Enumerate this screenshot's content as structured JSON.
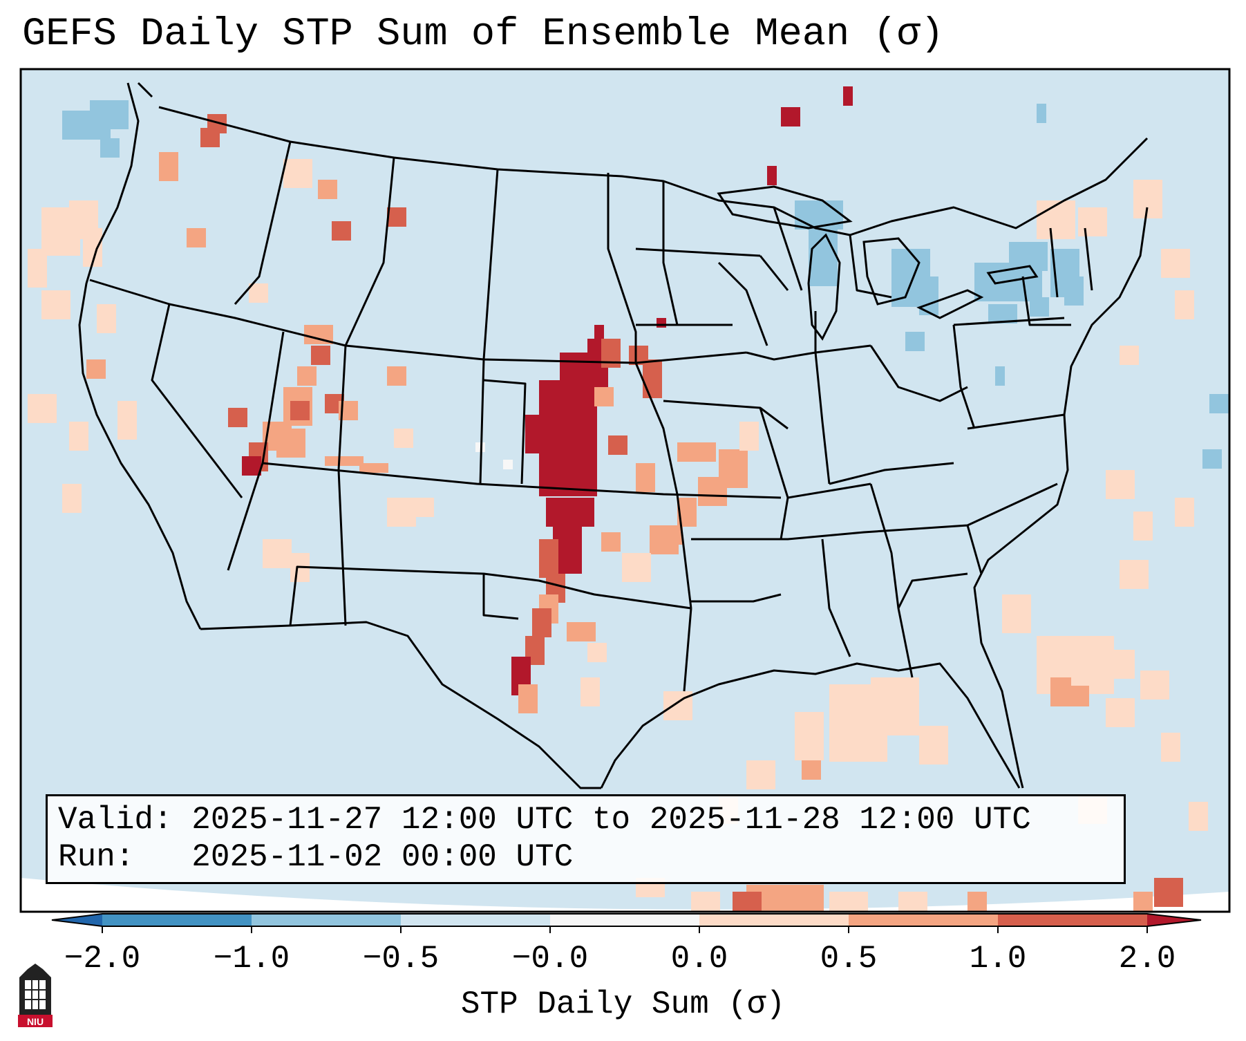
{
  "title": "GEFS Daily STP Sum of Ensemble Mean (σ)",
  "info": {
    "valid_line": "Valid: 2025-11-27 12:00 UTC to 2025-11-28 12:00 UTC",
    "run_line": "Run:   2025-11-02 00:00 UTC"
  },
  "colorbar": {
    "label": "STP Daily Sum (σ)",
    "ticks": [
      "−2.0",
      "−1.0",
      "−0.5",
      "−0.0",
      "0.0",
      "0.5",
      "1.0",
      "2.0"
    ],
    "bins": [
      {
        "range": "<-2.0",
        "color": "#2166ac"
      },
      {
        "range": "-2.0 to -1.0",
        "color": "#4393c3"
      },
      {
        "range": "-1.0 to -0.5",
        "color": "#92c5de"
      },
      {
        "range": "-0.5 to -0.0",
        "color": "#d1e5f0"
      },
      {
        "range": "-0.0 to 0.0",
        "color": "#f7f7f7"
      },
      {
        "range": "0.0 to 0.5",
        "color": "#fddbc7"
      },
      {
        "range": "0.5 to 1.0",
        "color": "#f4a582"
      },
      {
        "range": "1.0 to 2.0",
        "color": "#d6604d"
      },
      {
        "range": ">2.0",
        "color": "#b2182b"
      }
    ]
  },
  "map": {
    "background_color": "#d1e5f0",
    "region": "Contiguous United States",
    "features": [
      {
        "name": "high-stp-corridor",
        "description_value_sigma": ">2.0",
        "area": "Kansas, Oklahoma, Texas"
      },
      {
        "name": "moderate-stp-patches",
        "description_value_sigma": "0.5 to 1.0",
        "area": "Utah, Nevada, Arkansas, Missouri"
      },
      {
        "name": "great-lakes-negative",
        "description_value_sigma": "-1.0 to -0.5",
        "area": "Great Lakes, New York"
      }
    ]
  },
  "logo": {
    "text": "NIU",
    "color": "#c8102e"
  }
}
